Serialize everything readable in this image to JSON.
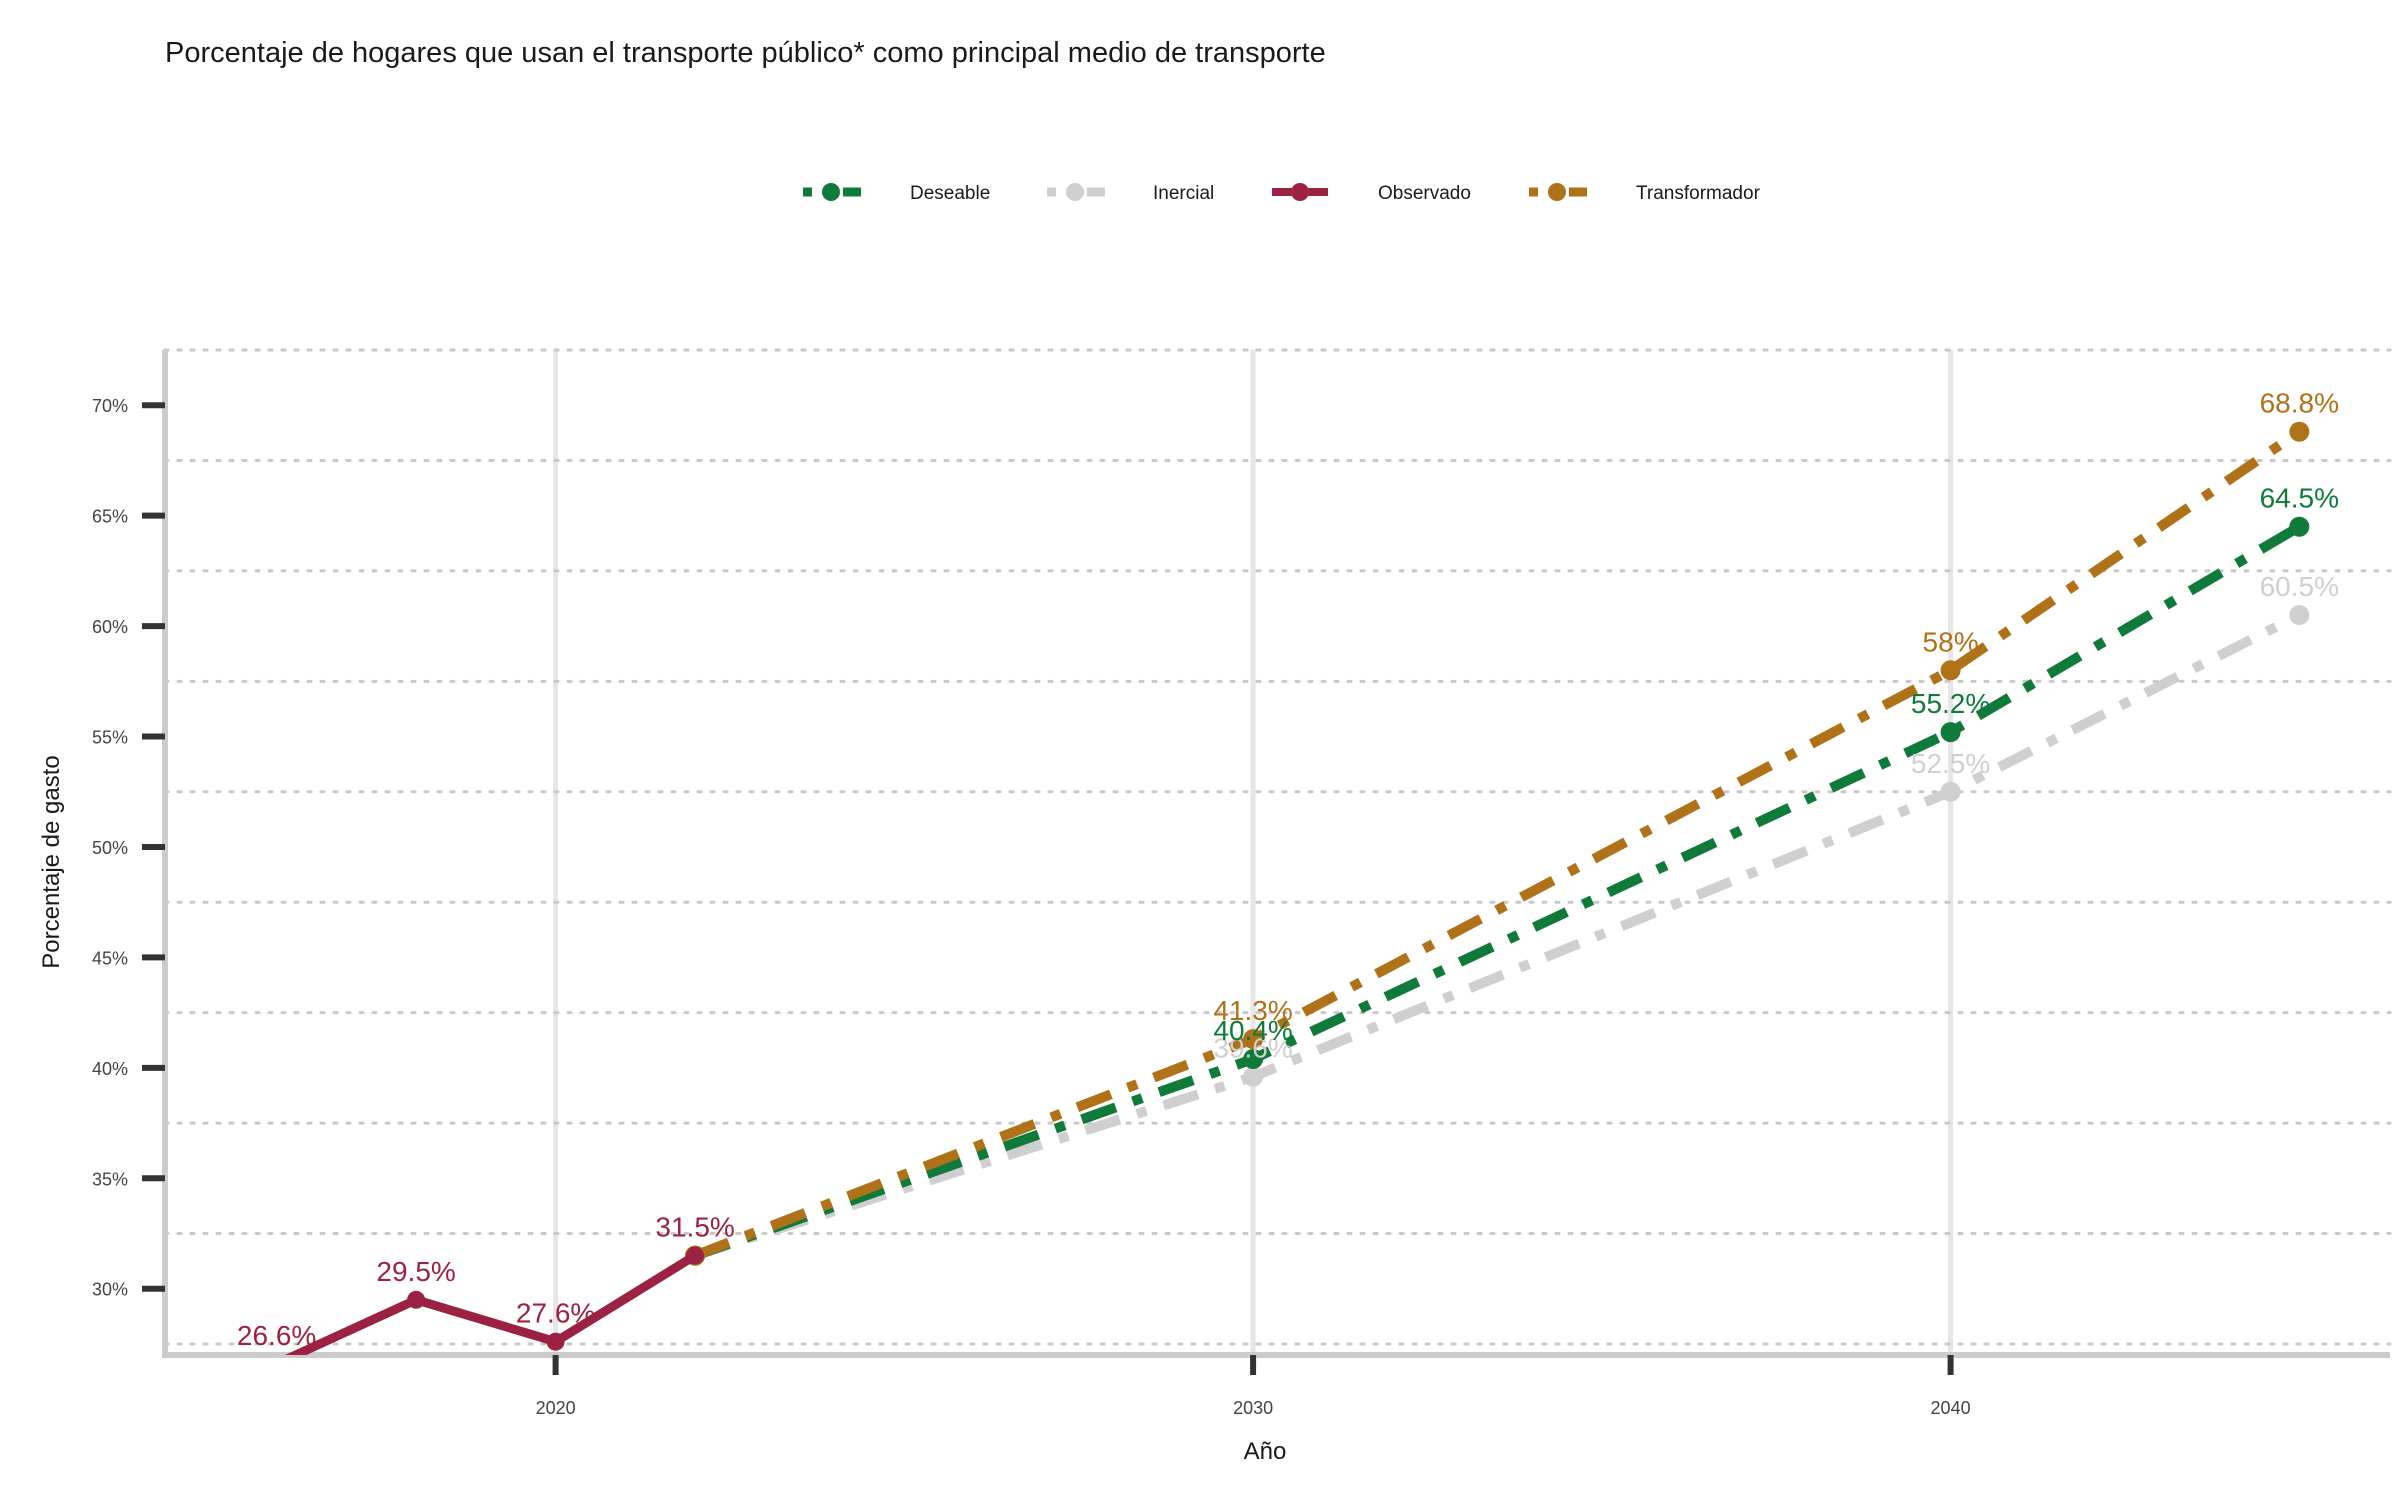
{
  "chart_data": {
    "type": "line",
    "title": "Porcentaje de hogares que usan el transporte público* como principal medio de transporte",
    "xlabel": "Año",
    "ylabel": "Porcentaje de gasto",
    "xlim": [
      2014.4,
      2046.3
    ],
    "ylim": [
      27.0,
      72.5
    ],
    "x_ticks": [
      2020,
      2030,
      2040
    ],
    "y_ticks": [
      30,
      35,
      40,
      45,
      50,
      55,
      60,
      65,
      70
    ],
    "y_tick_labels": [
      "30%",
      "35%",
      "40%",
      "45%",
      "50%",
      "55%",
      "60%",
      "65%",
      "70%"
    ],
    "grid": true,
    "legend_position": "top",
    "legend": [
      "Deseable",
      "Inercial",
      "Observado",
      "Transformador"
    ],
    "series": [
      {
        "name": "Deseable",
        "color": "#0f7a3a",
        "style": "dashdot",
        "x": [
          2022,
          2030,
          2040,
          2045
        ],
        "y": [
          31.5,
          40.4,
          55.2,
          64.5
        ],
        "labels": [
          "",
          "40.4%",
          "55.2%",
          "64.5%"
        ]
      },
      {
        "name": "Inercial",
        "color": "#cfcfcf",
        "style": "dashdot",
        "x": [
          2022,
          2030,
          2040,
          2045
        ],
        "y": [
          31.5,
          39.6,
          52.5,
          60.5
        ],
        "labels": [
          "",
          "39.6%",
          "52.5%",
          "60.5%"
        ]
      },
      {
        "name": "Observado",
        "color": "#9b2242",
        "style": "solid",
        "x": [
          2016,
          2018,
          2020,
          2022
        ],
        "y": [
          26.6,
          29.5,
          27.6,
          31.5
        ],
        "labels": [
          "26.6%",
          "29.5%",
          "27.6%",
          "31.5%"
        ]
      },
      {
        "name": "Transformador",
        "color": "#b07218",
        "style": "dashdot",
        "x": [
          2022,
          2030,
          2040,
          2045
        ],
        "y": [
          31.5,
          41.3,
          58.0,
          68.8
        ],
        "labels": [
          "",
          "41.3%",
          "58%",
          "68.8%"
        ]
      }
    ]
  }
}
